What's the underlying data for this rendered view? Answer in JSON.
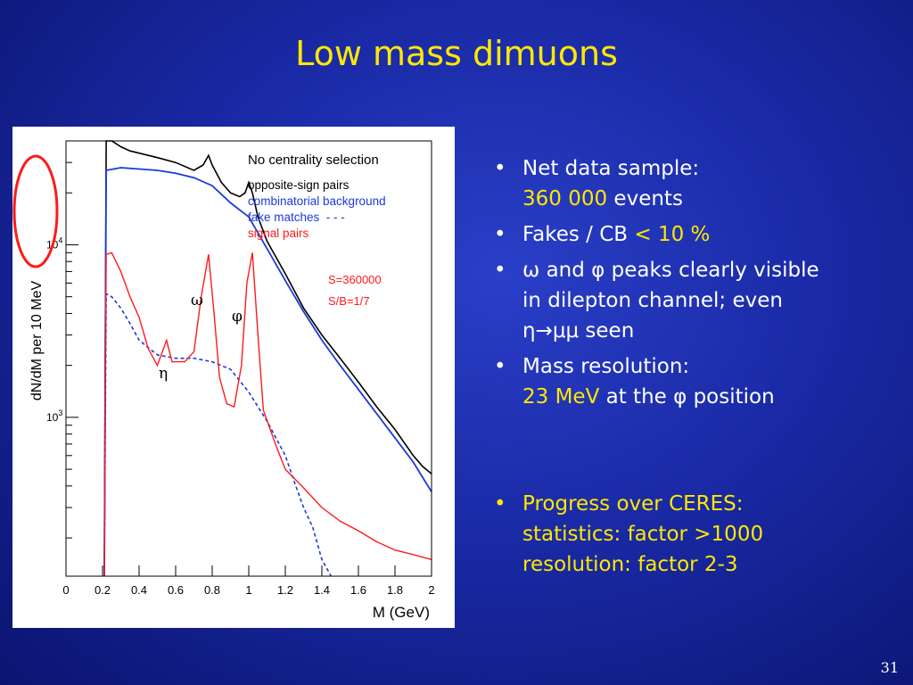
{
  "title": "Low mass dimuons",
  "page_number": "31",
  "bullets": {
    "b1_line1": "Net data sample:",
    "b1_value": "360 000",
    "b1_unit": " events",
    "b2_text": "Fakes / CB ",
    "b2_value": "< 10 %",
    "b3_line1": "ω and φ peaks clearly visible",
    "b3_line2": "in dilepton channel; even",
    "b3_line3": "η→μμ seen",
    "b4_line1": "Mass resolution:",
    "b4_value": "23 MeV",
    "b4_rest": " at the φ position",
    "b5_line1": "Progress over CERES:",
    "b5_line2": "statistics: factor >1000",
    "b5_line3": "resolution: factor 2-3"
  },
  "chart_data": {
    "type": "line",
    "title": "No centrality selection",
    "xlabel": "M (GeV)",
    "ylabel": "dN/dM per 10 MeV",
    "x_ticks": [
      "0",
      "0.2",
      "0.4",
      "0.6",
      "0.8",
      "1",
      "1.2",
      "1.4",
      "1.6",
      "1.8",
      "2"
    ],
    "xlim": [
      0,
      2
    ],
    "y_scale": "log",
    "ylim": [
      120,
      40000
    ],
    "y_ticks": [
      {
        "label": "10",
        "exp": "3",
        "value": 1000
      },
      {
        "label": "10",
        "exp": "4",
        "value": 10000
      }
    ],
    "legend": [
      "opposite-sign pairs",
      "combinatorial background",
      "fake matches  - - -",
      "signal pairs"
    ],
    "annotations": {
      "stats1": "S=360000",
      "stats2": "S/B=1/7",
      "omega": "ω",
      "phi": "φ",
      "eta": "η"
    },
    "colors": {
      "opposite": "#000000",
      "combinatorial": "#1a3adc",
      "fakes": "#1a3adc",
      "signal": "#ff1a1a",
      "annotation": "#ff1a1a"
    },
    "series": [
      {
        "name": "opposite-sign pairs",
        "points": [
          [
            0.21,
            120
          ],
          [
            0.22,
            40000
          ],
          [
            0.25,
            40000
          ],
          [
            0.3,
            37000
          ],
          [
            0.35,
            35000
          ],
          [
            0.4,
            34000
          ],
          [
            0.5,
            32000
          ],
          [
            0.6,
            30000
          ],
          [
            0.7,
            27000
          ],
          [
            0.75,
            29000
          ],
          [
            0.78,
            33000
          ],
          [
            0.8,
            29000
          ],
          [
            0.85,
            23000
          ],
          [
            0.9,
            20000
          ],
          [
            0.95,
            19000
          ],
          [
            0.98,
            20000
          ],
          [
            1.0,
            23000
          ],
          [
            1.02,
            20000
          ],
          [
            1.05,
            14500
          ],
          [
            1.1,
            10500
          ],
          [
            1.2,
            6800
          ],
          [
            1.3,
            4300
          ],
          [
            1.4,
            3000
          ],
          [
            1.5,
            2200
          ],
          [
            1.6,
            1600
          ],
          [
            1.7,
            1150
          ],
          [
            1.8,
            850
          ],
          [
            1.9,
            600
          ],
          [
            1.95,
            520
          ],
          [
            2.0,
            470
          ]
        ]
      },
      {
        "name": "combinatorial background",
        "points": [
          [
            0.21,
            120
          ],
          [
            0.22,
            27000
          ],
          [
            0.3,
            28000
          ],
          [
            0.4,
            27500
          ],
          [
            0.5,
            27000
          ],
          [
            0.6,
            26000
          ],
          [
            0.7,
            24500
          ],
          [
            0.8,
            22000
          ],
          [
            0.9,
            17500
          ],
          [
            1.0,
            14500
          ],
          [
            1.1,
            9500
          ],
          [
            1.2,
            6200
          ],
          [
            1.3,
            4100
          ],
          [
            1.4,
            2800
          ],
          [
            1.5,
            2000
          ],
          [
            1.6,
            1450
          ],
          [
            1.7,
            1050
          ],
          [
            1.8,
            760
          ],
          [
            1.9,
            550
          ],
          [
            2.0,
            370
          ]
        ]
      },
      {
        "name": "fake matches",
        "points": [
          [
            0.21,
            120
          ],
          [
            0.22,
            5200
          ],
          [
            0.25,
            5000
          ],
          [
            0.3,
            4300
          ],
          [
            0.35,
            3500
          ],
          [
            0.4,
            2800
          ],
          [
            0.5,
            2300
          ],
          [
            0.6,
            2200
          ],
          [
            0.7,
            2200
          ],
          [
            0.8,
            2100
          ],
          [
            0.9,
            1900
          ],
          [
            1.0,
            1400
          ],
          [
            1.1,
            950
          ],
          [
            1.2,
            600
          ],
          [
            1.25,
            420
          ],
          [
            1.3,
            300
          ],
          [
            1.35,
            230
          ],
          [
            1.4,
            150
          ],
          [
            1.45,
            120
          ]
        ]
      },
      {
        "name": "signal pairs",
        "points": [
          [
            0.21,
            120
          ],
          [
            0.22,
            8800
          ],
          [
            0.25,
            9000
          ],
          [
            0.3,
            7000
          ],
          [
            0.35,
            5000
          ],
          [
            0.4,
            3800
          ],
          [
            0.45,
            2500
          ],
          [
            0.5,
            2000
          ],
          [
            0.55,
            2800
          ],
          [
            0.58,
            2100
          ],
          [
            0.65,
            2100
          ],
          [
            0.7,
            2400
          ],
          [
            0.74,
            5000
          ],
          [
            0.78,
            8800
          ],
          [
            0.81,
            4000
          ],
          [
            0.84,
            1700
          ],
          [
            0.88,
            1200
          ],
          [
            0.92,
            1150
          ],
          [
            0.96,
            2000
          ],
          [
            0.99,
            6000
          ],
          [
            1.02,
            9000
          ],
          [
            1.05,
            3000
          ],
          [
            1.08,
            1100
          ],
          [
            1.15,
            680
          ],
          [
            1.2,
            500
          ],
          [
            1.3,
            390
          ],
          [
            1.4,
            300
          ],
          [
            1.5,
            250
          ],
          [
            1.6,
            220
          ],
          [
            1.7,
            190
          ],
          [
            1.8,
            170
          ],
          [
            1.9,
            160
          ],
          [
            2.0,
            150
          ]
        ]
      }
    ]
  }
}
